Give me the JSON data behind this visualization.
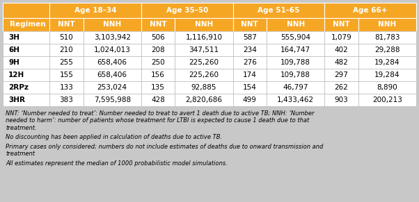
{
  "col_groups": [
    "Age 18–34",
    "Age 35–50",
    "Age 51–65",
    "Age 66+"
  ],
  "sub_cols": [
    "NNT",
    "NNH"
  ],
  "row_labels": [
    "3H",
    "6H",
    "9H",
    "12H",
    "2RPz",
    "3HR"
  ],
  "table_data": [
    [
      "510",
      "3,103,942",
      "506",
      "1,116,910",
      "587",
      "555,904",
      "1,079",
      "81,783"
    ],
    [
      "210",
      "1,024,013",
      "208",
      "347,511",
      "234",
      "164,747",
      "402",
      "29,288"
    ],
    [
      "255",
      "658,406",
      "250",
      "225,260",
      "276",
      "109,788",
      "482",
      "19,284"
    ],
    [
      "155",
      "658,406",
      "156",
      "225,260",
      "174",
      "109,788",
      "297",
      "19,284"
    ],
    [
      "133",
      "253,024",
      "135",
      "92,885",
      "154",
      "46,797",
      "262",
      "8,890"
    ],
    [
      "383",
      "7,595,988",
      "428",
      "2,820,686",
      "499",
      "1,433,462",
      "903",
      "200,213"
    ]
  ],
  "orange": "#F5A623",
  "white": "#FFFFFF",
  "light_gray": "#C8C8C8",
  "footer_lines": [
    "NNT: ‘Number needed to treat’: Number needed to treat to avert 1 death due to active TB; NNH: ‘Number",
    "needed to harm’: number of patients whose treatment for LTBI is expected to cause 1 death due to that",
    "treatment.",
    "",
    "No discounting has been applied in calculation of deaths due to active TB.",
    "",
    "Primary cases only considered; numbers do not include estimates of deaths due to onward transmission and",
    "treatment",
    "",
    "All estimates represent the median of 1000 probabilistic model simulations."
  ],
  "fig_width": 6.02,
  "fig_height": 2.91,
  "dpi": 100
}
